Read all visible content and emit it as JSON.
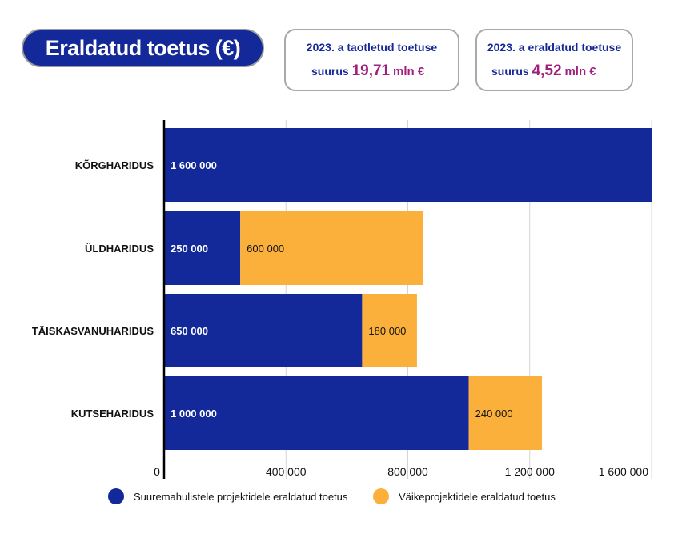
{
  "header": {
    "title": "Eraldatud toetus (€)"
  },
  "stats": [
    {
      "line1": "2023. a taotletud toetuse",
      "prefix": "suurus",
      "amount": "19,71",
      "unit": "mln €"
    },
    {
      "line1": "2023. a eraldatud toetuse",
      "prefix": "suurus",
      "amount": "4,52",
      "unit": "mln €"
    }
  ],
  "colors": {
    "large": "#13299a",
    "small": "#fbb03b",
    "accent": "#a0207e"
  },
  "chart_data": {
    "type": "bar",
    "orientation": "horizontal",
    "stacked": true,
    "categories": [
      "KÕRGHARIDUS",
      "ÜLDHARIDUS",
      "TÄISKASVANUHARIDUS",
      "KUTSEHARIDUS"
    ],
    "series": [
      {
        "name": "Suuremahulistele projektidele eraldatud toetus",
        "values": [
          1600000,
          250000,
          650000,
          1000000
        ],
        "labels": [
          "1 600 000",
          "250 000",
          "650 000",
          "1 000 000"
        ]
      },
      {
        "name": "Väikeprojektidele eraldatud toetus",
        "values": [
          0,
          600000,
          180000,
          240000
        ],
        "labels": [
          "",
          "600 000",
          "180 000",
          "240 000"
        ]
      }
    ],
    "x_ticks": [
      0,
      400000,
      800000,
      1200000,
      1600000
    ],
    "x_tick_labels": [
      "0",
      "400 000",
      "800 000",
      "1 200 000",
      "1 600 000"
    ],
    "xlim": [
      0,
      1600000
    ],
    "grid": "vertical",
    "legend_position": "bottom"
  }
}
